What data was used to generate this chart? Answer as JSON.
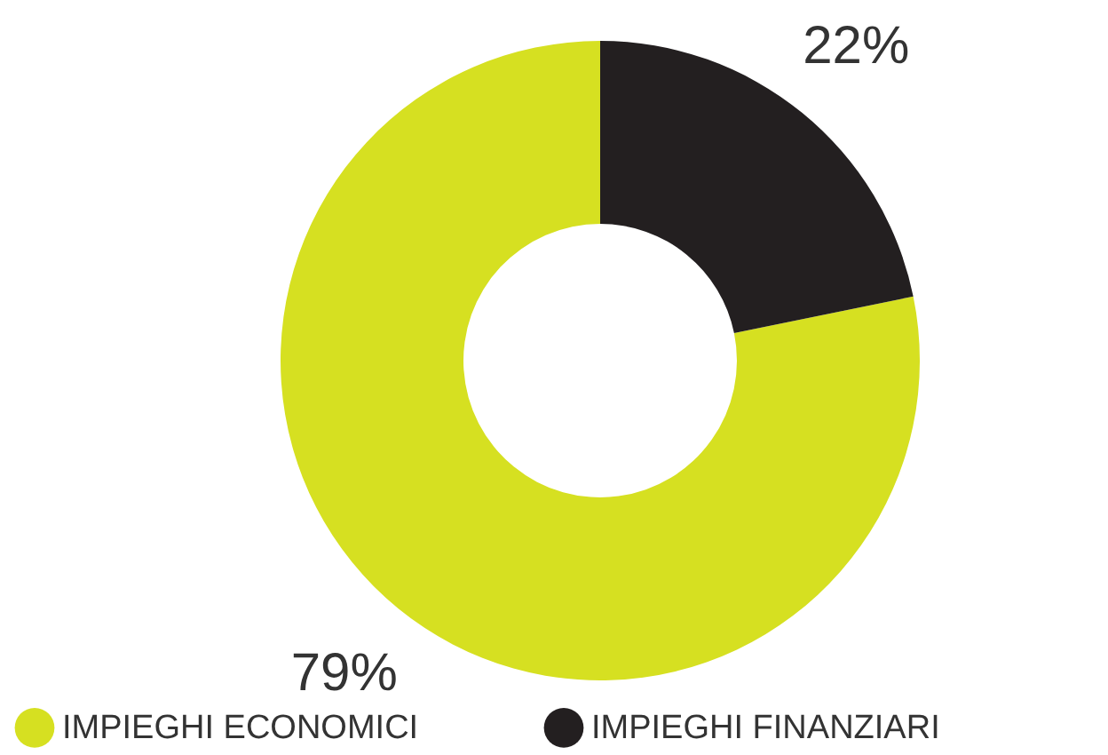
{
  "chart_data": {
    "type": "donut",
    "categories": [
      "IMPIEGHI ECONOMICI",
      "IMPIEGHI FINANZIARI"
    ],
    "values": [
      79,
      22
    ],
    "value_labels": [
      "79%",
      "22%"
    ],
    "colors": [
      "#d6e021",
      "#231f20"
    ],
    "legend": "bottom"
  }
}
